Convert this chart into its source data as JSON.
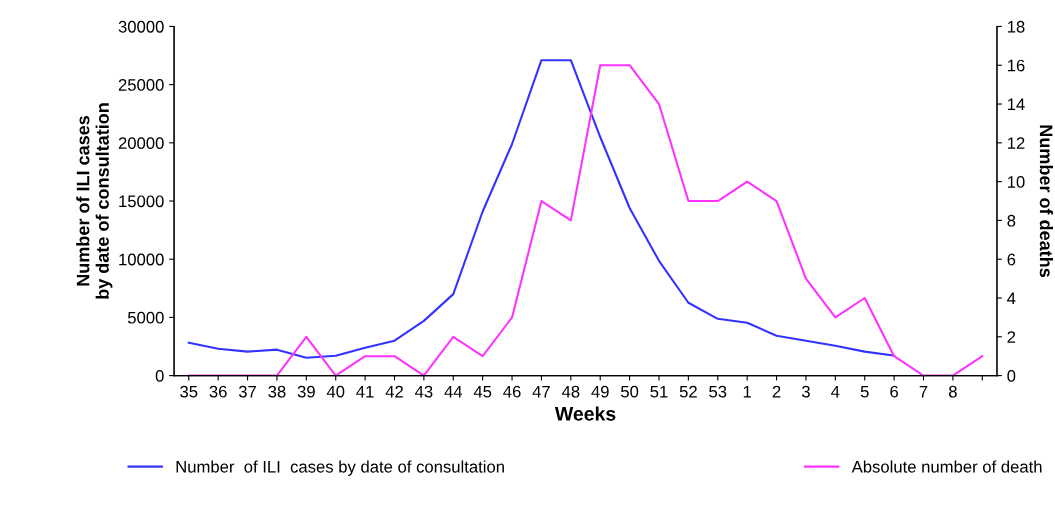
{
  "chart_data": {
    "type": "line",
    "xlabel": "Weeks",
    "ylabel": "Number of ILI cases\nby date of consultation",
    "y2label": "Number of deaths",
    "categories": [
      "35",
      "36",
      "37",
      "38",
      "39",
      "40",
      "41",
      "42",
      "43",
      "44",
      "45",
      "46",
      "47",
      "48",
      "49",
      "50",
      "51",
      "52",
      "53",
      "1",
      "2",
      "3",
      "4",
      "5",
      "6",
      "7",
      "8",
      null
    ],
    "series": [
      {
        "name": "Number  of ILI  cases by date of consultation",
        "color": "#3333ff",
        "values": [
          2830,
          2300,
          2060,
          2230,
          1540,
          1710,
          2400,
          3000,
          4700,
          7000,
          14100,
          19900,
          27100,
          27100,
          20500,
          14400,
          9860,
          6260,
          4880,
          4540,
          3430,
          3000,
          2570,
          2060,
          1710,
          null,
          null,
          null
        ]
      },
      {
        "name": "Absolute number of death",
        "color": "#ff33ff",
        "axis": "y2",
        "values": [
          0,
          0,
          0,
          0,
          2,
          0,
          1,
          1,
          0,
          2,
          1,
          3,
          9,
          8,
          16,
          16,
          14,
          9,
          9,
          10,
          9,
          5,
          3,
          4,
          1,
          0,
          0,
          1
        ]
      }
    ],
    "ylim": [
      0,
      30000
    ],
    "yticks": [
      0,
      5000,
      10000,
      15000,
      20000,
      25000,
      30000
    ],
    "y2lim": [
      0,
      18
    ],
    "y2ticks": [
      0,
      2,
      4,
      6,
      8,
      10,
      12,
      14,
      16,
      18
    ],
    "grid": false,
    "legend": "bottom",
    "marker": "none",
    "line_style": "solid"
  }
}
